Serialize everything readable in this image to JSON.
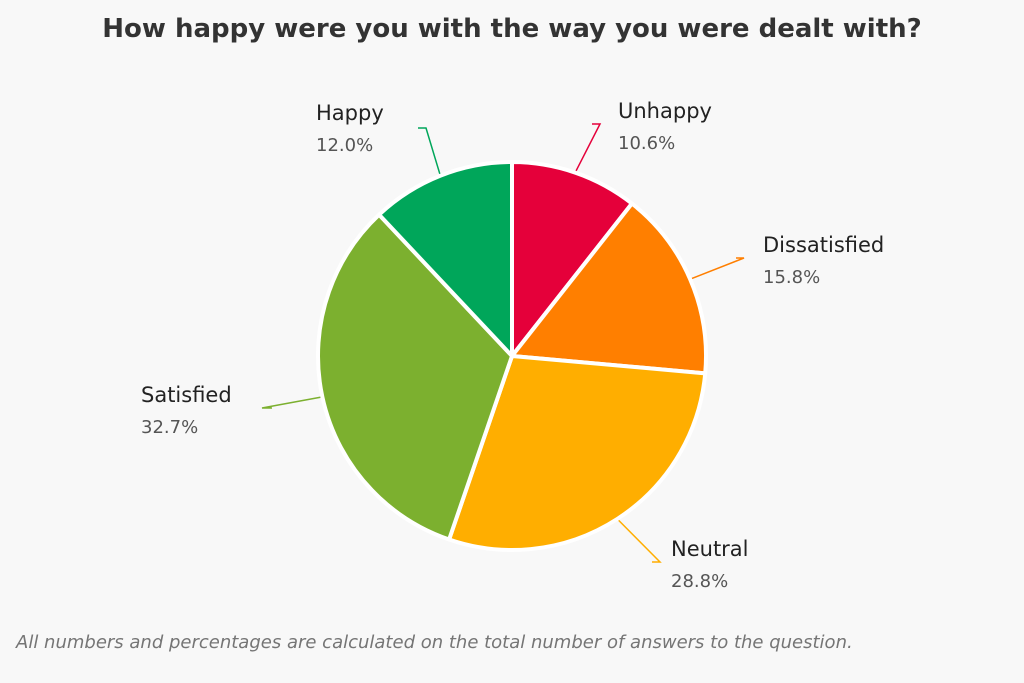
{
  "chart_data": {
    "type": "pie",
    "title": "How happy were you with the way you were dealt with?",
    "slices": [
      {
        "label": "Unhappy",
        "value": 10.6,
        "value_text": "10.6%",
        "color": "#e5003a"
      },
      {
        "label": "Dissatisfied",
        "value": 15.8,
        "value_text": "15.8%",
        "color": "#ff7f00"
      },
      {
        "label": "Neutral",
        "value": 28.8,
        "value_text": "28.8%",
        "color": "#ffae00"
      },
      {
        "label": "Satisfied",
        "value": 32.7,
        "value_text": "32.7%",
        "color": "#7cb02f"
      },
      {
        "label": "Happy",
        "value": 12.0,
        "value_text": "12.0%",
        "color": "#00a65a"
      }
    ]
  },
  "footnote": "All numbers and percentages are calculated on the total number of answers to the question."
}
